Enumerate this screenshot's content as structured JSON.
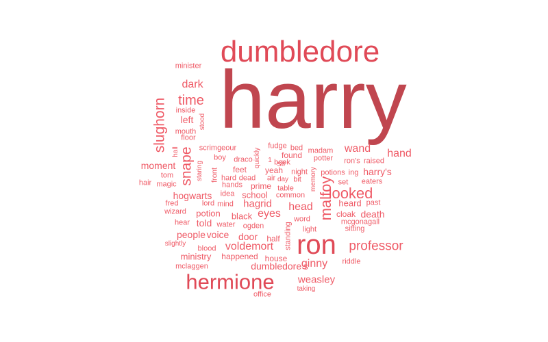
{
  "chart_data": {
    "type": "wordcloud",
    "colors": {
      "top": "#c0464f",
      "second": "#e04a57",
      "other": "#ef5a66"
    },
    "words": [
      {
        "text": "harry",
        "rank": 1,
        "vertical": false
      },
      {
        "text": "dumbledore",
        "rank": 2,
        "vertical": false
      },
      {
        "text": "ron",
        "rank": 3,
        "vertical": false
      },
      {
        "text": "hermione",
        "rank": 4,
        "vertical": false
      },
      {
        "text": "looked",
        "rank": 5,
        "vertical": false
      },
      {
        "text": "malfoy",
        "rank": 6,
        "vertical": true
      },
      {
        "text": "slughorn",
        "rank": 7,
        "vertical": true
      },
      {
        "text": "snape",
        "rank": 8,
        "vertical": true
      },
      {
        "text": "professor",
        "rank": 9,
        "vertical": false
      },
      {
        "text": "time",
        "rank": 10,
        "vertical": false
      },
      {
        "text": "dark",
        "rank": 11,
        "vertical": false
      },
      {
        "text": "hand",
        "rank": 12,
        "vertical": false
      },
      {
        "text": "wand",
        "rank": 13,
        "vertical": false
      },
      {
        "text": "eyes",
        "rank": 14,
        "vertical": false
      },
      {
        "text": "voldemort",
        "rank": 15,
        "vertical": false
      },
      {
        "text": "ginny",
        "rank": 16,
        "vertical": false
      },
      {
        "text": "head",
        "rank": 17,
        "vertical": false
      },
      {
        "text": "hagrid",
        "rank": 18,
        "vertical": false
      },
      {
        "text": "weasley",
        "rank": 19,
        "vertical": false
      },
      {
        "text": "dumbledore's",
        "rank": 20,
        "vertical": false
      },
      {
        "text": "door",
        "rank": 21,
        "vertical": false
      },
      {
        "text": "voice",
        "rank": 22,
        "vertical": false
      },
      {
        "text": "people",
        "rank": 23,
        "vertical": false
      },
      {
        "text": "moment",
        "rank": 24,
        "vertical": false
      },
      {
        "text": "harry's",
        "rank": 25,
        "vertical": false
      },
      {
        "text": "death",
        "rank": 26,
        "vertical": false
      },
      {
        "text": "hogwarts",
        "rank": 27,
        "vertical": false
      },
      {
        "text": "heard",
        "rank": 28,
        "vertical": false
      },
      {
        "text": "left",
        "rank": 29,
        "vertical": false
      },
      {
        "text": "told",
        "rank": 30,
        "vertical": false
      },
      {
        "text": "potion",
        "rank": 31,
        "vertical": false
      },
      {
        "text": "school",
        "rank": 32,
        "vertical": false
      },
      {
        "text": "black",
        "rank": 33,
        "vertical": false
      },
      {
        "text": "ministry",
        "rank": 34,
        "vertical": false
      },
      {
        "text": "house",
        "rank": 35,
        "vertical": false
      },
      {
        "text": "half",
        "rank": 36,
        "vertical": false
      },
      {
        "text": "cloak",
        "rank": 37,
        "vertical": false
      },
      {
        "text": "feet",
        "rank": 38,
        "vertical": false
      },
      {
        "text": "prime",
        "rank": 39,
        "vertical": false
      },
      {
        "text": "yeah",
        "rank": 40,
        "vertical": false
      },
      {
        "text": "sir",
        "rank": 41,
        "vertical": false
      },
      {
        "text": "found",
        "rank": 42,
        "vertical": false
      },
      {
        "text": "potter",
        "rank": 43,
        "vertical": false
      },
      {
        "text": "front",
        "rank": 44,
        "vertical": true
      },
      {
        "text": "standing",
        "rank": 45,
        "vertical": true
      },
      {
        "text": "happened",
        "rank": 46,
        "vertical": false
      },
      {
        "text": "minister",
        "rank": 47,
        "vertical": false
      },
      {
        "text": "inside",
        "rank": 48,
        "vertical": false
      },
      {
        "text": "mouth",
        "rank": 49,
        "vertical": false
      },
      {
        "text": "floor",
        "rank": 50,
        "vertical": false
      },
      {
        "text": "stood",
        "rank": 51,
        "vertical": true
      },
      {
        "text": "hall",
        "rank": 52,
        "vertical": true
      },
      {
        "text": "scrimgeour",
        "rank": 53,
        "vertical": false
      },
      {
        "text": "boy",
        "rank": 54,
        "vertical": false
      },
      {
        "text": "draco",
        "rank": 55,
        "vertical": false
      },
      {
        "text": "quickly",
        "rank": 56,
        "vertical": true
      },
      {
        "text": "fudge",
        "rank": 57,
        "vertical": false
      },
      {
        "text": "bed",
        "rank": 58,
        "vertical": false
      },
      {
        "text": "madam",
        "rank": 59,
        "vertical": false
      },
      {
        "text": "book",
        "rank": 60,
        "vertical": false
      },
      {
        "text": "1",
        "rank": 61,
        "vertical": false
      },
      {
        "text": "memory",
        "rank": 62,
        "vertical": true
      },
      {
        "text": "night",
        "rank": 63,
        "vertical": false
      },
      {
        "text": "ron's",
        "rank": 64,
        "vertical": false
      },
      {
        "text": "raised",
        "rank": 65,
        "vertical": false
      },
      {
        "text": "potions",
        "rank": 66,
        "vertical": false
      },
      {
        "text": "ing",
        "rank": 67,
        "vertical": false
      },
      {
        "text": "staring",
        "rank": 68,
        "vertical": true
      },
      {
        "text": "tom",
        "rank": 69,
        "vertical": false
      },
      {
        "text": "hard",
        "rank": 70,
        "vertical": false
      },
      {
        "text": "dead",
        "rank": 71,
        "vertical": false
      },
      {
        "text": "air",
        "rank": 72,
        "vertical": false
      },
      {
        "text": "day",
        "rank": 73,
        "vertical": false
      },
      {
        "text": "bit",
        "rank": 74,
        "vertical": false
      },
      {
        "text": "set",
        "rank": 75,
        "vertical": false
      },
      {
        "text": "eaters",
        "rank": 76,
        "vertical": false
      },
      {
        "text": "hair",
        "rank": 77,
        "vertical": false
      },
      {
        "text": "magic",
        "rank": 78,
        "vertical": false
      },
      {
        "text": "hands",
        "rank": 79,
        "vertical": false
      },
      {
        "text": "table",
        "rank": 80,
        "vertical": false
      },
      {
        "text": "idea",
        "rank": 81,
        "vertical": false
      },
      {
        "text": "common",
        "rank": 82,
        "vertical": false
      },
      {
        "text": "past",
        "rank": 83,
        "vertical": false
      },
      {
        "text": "fred",
        "rank": 84,
        "vertical": false
      },
      {
        "text": "lord",
        "rank": 85,
        "vertical": false
      },
      {
        "text": "mind",
        "rank": 86,
        "vertical": false
      },
      {
        "text": "wizard",
        "rank": 87,
        "vertical": false
      },
      {
        "text": "word",
        "rank": 88,
        "vertical": false
      },
      {
        "text": "mcgonagall",
        "rank": 89,
        "vertical": false
      },
      {
        "text": "hear",
        "rank": 90,
        "vertical": false
      },
      {
        "text": "water",
        "rank": 91,
        "vertical": false
      },
      {
        "text": "ogden",
        "rank": 92,
        "vertical": false
      },
      {
        "text": "light",
        "rank": 93,
        "vertical": false
      },
      {
        "text": "sitting",
        "rank": 94,
        "vertical": false
      },
      {
        "text": "slightly",
        "rank": 95,
        "vertical": false
      },
      {
        "text": "blood",
        "rank": 96,
        "vertical": false
      },
      {
        "text": "riddle",
        "rank": 97,
        "vertical": false
      },
      {
        "text": "mclaggen",
        "rank": 98,
        "vertical": false
      },
      {
        "text": "office",
        "rank": 99,
        "vertical": false
      },
      {
        "text": "taking",
        "rank": 100,
        "vertical": false
      }
    ]
  }
}
